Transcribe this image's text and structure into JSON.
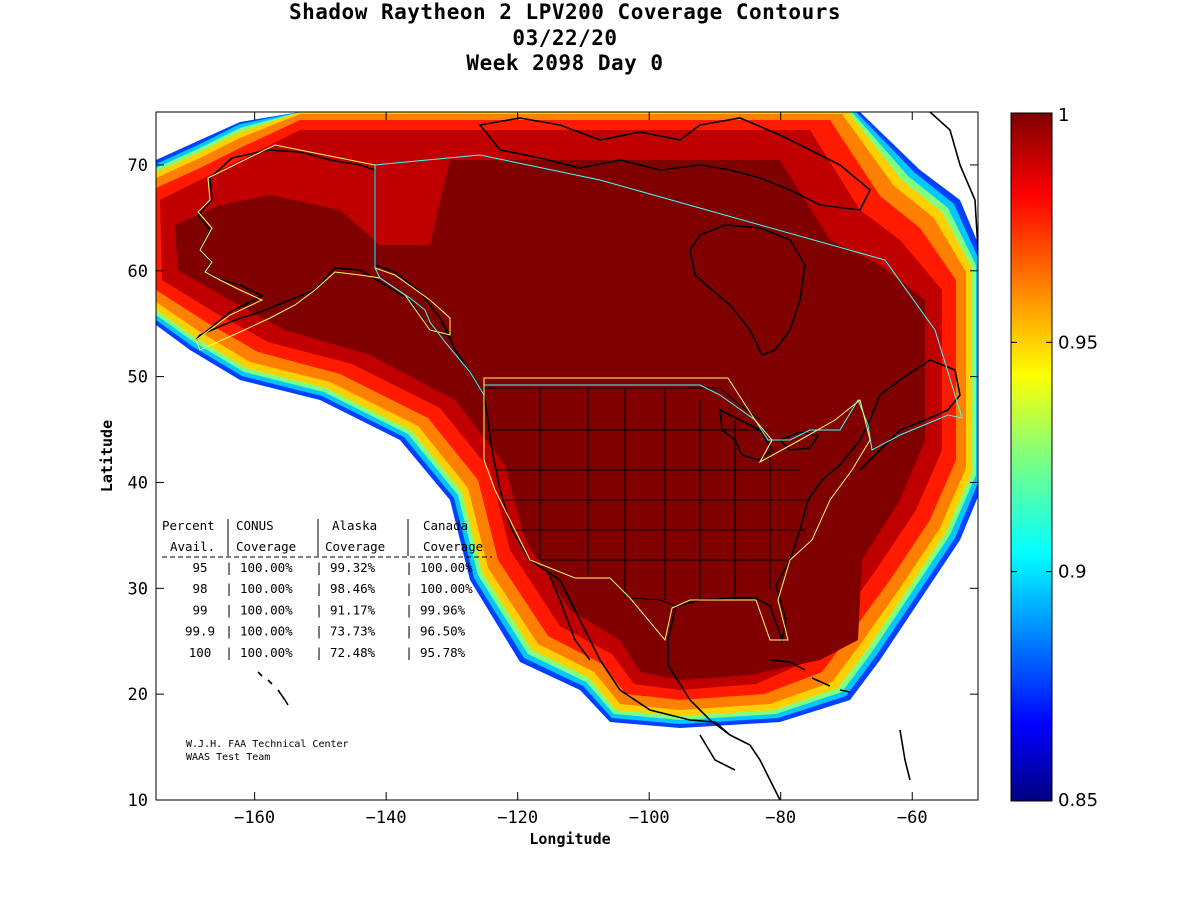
{
  "title": {
    "line1": "Shadow Raytheon 2 LPV200 Coverage Contours",
    "line2": "03/22/20",
    "line3": "Week 2098 Day 0"
  },
  "axes": {
    "xlabel": "Longitude",
    "ylabel": "Latitude",
    "xlim": [
      -175,
      -50
    ],
    "ylim": [
      10,
      75
    ],
    "xticks": [
      -160,
      -140,
      -120,
      -100,
      -80,
      -60
    ],
    "yticks": [
      10,
      20,
      30,
      40,
      50,
      60,
      70
    ]
  },
  "colorbar": {
    "range": [
      0.85,
      1
    ],
    "labels": [
      "1",
      "0.95",
      "0.9",
      "0.85"
    ],
    "label_values": [
      1,
      0.95,
      0.9,
      0.85
    ]
  },
  "table": {
    "header1": [
      "Percent",
      "CONUS",
      "Alaska",
      "Canada"
    ],
    "header2": [
      "Avail.",
      "Coverage",
      "Coverage",
      "Coverage"
    ],
    "rows": [
      [
        "95",
        "100.00%",
        "99.32%",
        "100.00%"
      ],
      [
        "98",
        "100.00%",
        "98.46%",
        "100.00%"
      ],
      [
        "99",
        "100.00%",
        "91.17%",
        "99.96%"
      ],
      [
        "99.9",
        "100.00%",
        "73.73%",
        "96.50%"
      ],
      [
        "100",
        "100.00%",
        "72.48%",
        "95.78%"
      ]
    ]
  },
  "credit": {
    "line1": "W.J.H. FAA Technical Center",
    "line2": "WAAS Test Team"
  },
  "colors": {
    "core": "#800000",
    "band1": "#c00000",
    "band2": "#ff1a00",
    "band3": "#ff8000",
    "band4": "#ffd000",
    "band5": "#80ff80",
    "band6": "#00c8ff",
    "band7": "#0040ff"
  }
}
